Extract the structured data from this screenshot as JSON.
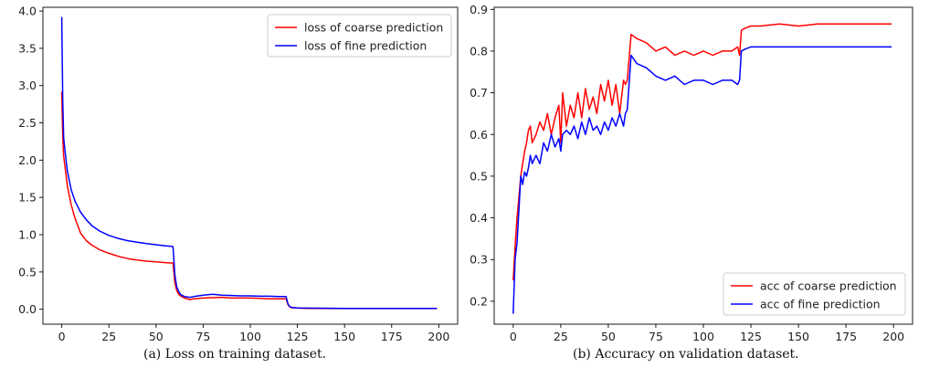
{
  "chart_data": [
    {
      "type": "line",
      "caption": "(a) Loss on training dataset.",
      "title": "",
      "xlabel": "",
      "ylabel": "",
      "xlim": [
        -10,
        210
      ],
      "ylim": [
        -0.2,
        4.05
      ],
      "xticks": [
        0,
        25,
        50,
        75,
        100,
        125,
        150,
        175,
        200
      ],
      "yticks": [
        0.0,
        0.5,
        1.0,
        1.5,
        2.0,
        2.5,
        3.0,
        3.5,
        4.0
      ],
      "ytick_labels": [
        "0.0",
        "0.5",
        "1.0",
        "1.5",
        "2.0",
        "2.5",
        "3.0",
        "3.5",
        "4.0"
      ],
      "legend_position": "top-right",
      "series": [
        {
          "name": "loss of coarse prediction",
          "color": "#ff0000",
          "x": [
            0,
            0.5,
            1,
            2,
            3,
            5,
            7,
            10,
            13,
            16,
            20,
            25,
            30,
            35,
            40,
            45,
            50,
            55,
            58,
            59,
            60,
            61,
            62,
            63,
            65,
            68,
            70,
            75,
            80,
            85,
            90,
            95,
            100,
            105,
            110,
            115,
            118,
            119,
            120,
            121,
            122,
            125,
            130,
            150,
            175,
            199
          ],
          "y": [
            2.92,
            2.3,
            2.05,
            1.85,
            1.65,
            1.4,
            1.22,
            1.02,
            0.92,
            0.86,
            0.8,
            0.75,
            0.71,
            0.68,
            0.66,
            0.645,
            0.635,
            0.625,
            0.62,
            0.62,
            0.35,
            0.25,
            0.2,
            0.18,
            0.15,
            0.13,
            0.14,
            0.15,
            0.155,
            0.16,
            0.15,
            0.15,
            0.15,
            0.145,
            0.14,
            0.14,
            0.14,
            0.14,
            0.06,
            0.03,
            0.02,
            0.015,
            0.012,
            0.01,
            0.01,
            0.01
          ]
        },
        {
          "name": "loss of fine prediction",
          "color": "#0000ff",
          "x": [
            0,
            0.5,
            1,
            2,
            3,
            5,
            7,
            10,
            13,
            16,
            20,
            25,
            30,
            35,
            40,
            45,
            50,
            55,
            58,
            59,
            60,
            61,
            62,
            63,
            65,
            68,
            70,
            75,
            80,
            85,
            90,
            95,
            100,
            105,
            110,
            115,
            118,
            119,
            120,
            121,
            122,
            125,
            130,
            150,
            175,
            199
          ],
          "y": [
            3.92,
            2.8,
            2.3,
            2.05,
            1.85,
            1.6,
            1.45,
            1.3,
            1.2,
            1.12,
            1.05,
            0.99,
            0.95,
            0.92,
            0.9,
            0.88,
            0.865,
            0.85,
            0.845,
            0.84,
            0.45,
            0.3,
            0.24,
            0.2,
            0.17,
            0.16,
            0.17,
            0.19,
            0.2,
            0.19,
            0.185,
            0.18,
            0.18,
            0.175,
            0.175,
            0.17,
            0.17,
            0.17,
            0.07,
            0.035,
            0.025,
            0.018,
            0.015,
            0.012,
            0.012,
            0.012
          ]
        }
      ]
    },
    {
      "type": "line",
      "caption": "(b) Accuracy on validation dataset.",
      "title": "",
      "xlabel": "",
      "ylabel": "",
      "xlim": [
        -10,
        210
      ],
      "ylim": [
        0.145,
        0.905
      ],
      "xticks": [
        0,
        25,
        50,
        75,
        100,
        125,
        150,
        175,
        200
      ],
      "yticks": [
        0.2,
        0.3,
        0.4,
        0.5,
        0.6,
        0.7,
        0.8,
        0.9
      ],
      "ytick_labels": [
        "0.2",
        "0.3",
        "0.4",
        "0.5",
        "0.6",
        "0.7",
        "0.8",
        "0.9"
      ],
      "legend_position": "bottom-right",
      "series": [
        {
          "name": "acc of coarse prediction",
          "color": "#ff0000",
          "x": [
            0,
            1,
            2,
            3,
            4,
            5,
            6,
            7,
            8,
            9,
            10,
            12,
            14,
            16,
            18,
            20,
            22,
            24,
            25,
            26,
            28,
            30,
            32,
            34,
            36,
            38,
            40,
            42,
            44,
            46,
            48,
            50,
            52,
            54,
            56,
            58,
            59,
            60,
            62,
            65,
            70,
            75,
            80,
            85,
            90,
            95,
            100,
            105,
            110,
            115,
            118,
            119,
            120,
            122,
            125,
            130,
            140,
            150,
            160,
            170,
            180,
            190,
            199
          ],
          "y": [
            0.25,
            0.33,
            0.4,
            0.45,
            0.5,
            0.53,
            0.56,
            0.58,
            0.61,
            0.62,
            0.58,
            0.6,
            0.63,
            0.61,
            0.65,
            0.6,
            0.64,
            0.67,
            0.58,
            0.7,
            0.62,
            0.67,
            0.64,
            0.7,
            0.64,
            0.71,
            0.66,
            0.69,
            0.65,
            0.72,
            0.68,
            0.73,
            0.67,
            0.72,
            0.65,
            0.73,
            0.72,
            0.73,
            0.84,
            0.83,
            0.82,
            0.8,
            0.81,
            0.79,
            0.8,
            0.79,
            0.8,
            0.79,
            0.8,
            0.8,
            0.81,
            0.79,
            0.85,
            0.855,
            0.86,
            0.86,
            0.865,
            0.86,
            0.865,
            0.865,
            0.865,
            0.865,
            0.865
          ]
        },
        {
          "name": "acc of fine prediction",
          "color": "#0000ff",
          "x": [
            0,
            1,
            2,
            3,
            4,
            5,
            6,
            7,
            8,
            9,
            10,
            12,
            14,
            16,
            18,
            20,
            22,
            24,
            25,
            26,
            28,
            30,
            32,
            34,
            36,
            38,
            40,
            42,
            44,
            46,
            48,
            50,
            52,
            54,
            56,
            58,
            59,
            60,
            62,
            65,
            70,
            75,
            80,
            85,
            90,
            95,
            100,
            105,
            110,
            115,
            118,
            119,
            120,
            122,
            125,
            130,
            140,
            150,
            160,
            170,
            180,
            190,
            199
          ],
          "y": [
            0.17,
            0.3,
            0.34,
            0.42,
            0.5,
            0.48,
            0.51,
            0.5,
            0.52,
            0.55,
            0.53,
            0.55,
            0.53,
            0.58,
            0.56,
            0.6,
            0.57,
            0.59,
            0.56,
            0.6,
            0.61,
            0.6,
            0.62,
            0.59,
            0.63,
            0.6,
            0.64,
            0.61,
            0.62,
            0.6,
            0.63,
            0.61,
            0.64,
            0.62,
            0.65,
            0.62,
            0.65,
            0.66,
            0.79,
            0.77,
            0.76,
            0.74,
            0.73,
            0.74,
            0.72,
            0.73,
            0.73,
            0.72,
            0.73,
            0.73,
            0.72,
            0.73,
            0.8,
            0.805,
            0.81,
            0.81,
            0.81,
            0.81,
            0.81,
            0.81,
            0.81,
            0.81,
            0.81
          ]
        }
      ]
    }
  ]
}
